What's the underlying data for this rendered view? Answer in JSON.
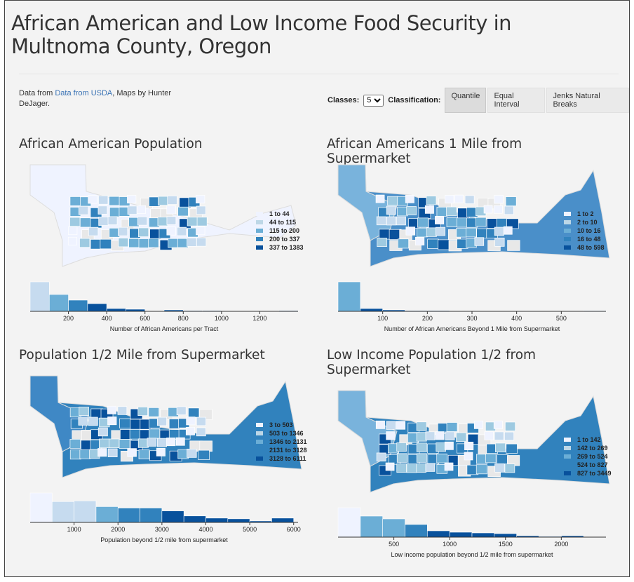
{
  "header": {
    "title": "African American and Low Income Food Security in Multnoma County, Oregon"
  },
  "credits": {
    "prefix": "Data from ",
    "link": "Data from USDA",
    "suffix": ", Maps by Hunter DeJager."
  },
  "controls": {
    "classes_label": "Classes:",
    "classes_value": "5",
    "classification_label": "Classification:",
    "buttons": [
      "Quantile",
      "Equal Interval",
      "Jenks Natural Breaks"
    ],
    "active_button": 0
  },
  "chart_data": [
    {
      "type": "histogram",
      "title": "African American Population",
      "legend": [
        {
          "label": "1 to 44",
          "color": "#eff3ff"
        },
        {
          "label": "44 to 115",
          "color": "#bdd7e7"
        },
        {
          "label": "115 to 200",
          "color": "#6baed6"
        },
        {
          "label": "200 to 337",
          "color": "#3182bd"
        },
        {
          "label": "337 to 1383",
          "color": "#08519c"
        }
      ],
      "bins": [
        0,
        100,
        200,
        300,
        400,
        500,
        600,
        700,
        800,
        900,
        1000,
        1100,
        1200,
        1300,
        1400
      ],
      "values": [
        42,
        24,
        16,
        11,
        4,
        3,
        0,
        2,
        1,
        1,
        0,
        0,
        0,
        1
      ],
      "bar_colors": [
        "#c6dbef",
        "#6baed6",
        "#3182bd",
        "#08519c",
        "#08519c",
        "#08519c",
        "#08519c",
        "#08519c",
        "#08519c",
        "#08519c",
        "#08519c",
        "#08519c",
        "#08519c",
        "#08519c"
      ],
      "xlim": [
        0,
        1400
      ],
      "xticks": [
        200,
        400,
        600,
        800,
        1000,
        1200
      ],
      "xlabel": "Number of African Americans per Tract"
    },
    {
      "type": "histogram",
      "title": "African Americans 1 Mile from Supermarket",
      "legend": [
        {
          "label": "1 to 2",
          "color": "#eff3ff"
        },
        {
          "label": "2 to 10",
          "color": "#bdd7e7"
        },
        {
          "label": "10 to 16",
          "color": "#6baed6"
        },
        {
          "label": "16 to 48",
          "color": "#3182bd"
        },
        {
          "label": "48 to 598",
          "color": "#08519c"
        }
      ],
      "bins": [
        0,
        50,
        100,
        150,
        200,
        250,
        300,
        350,
        400,
        450,
        500,
        550,
        600
      ],
      "values": [
        42,
        4,
        2,
        1,
        1,
        0,
        0,
        0,
        0,
        0,
        0,
        1
      ],
      "bar_colors": [
        "#6baed6",
        "#08519c",
        "#08519c",
        "#08519c",
        "#08519c",
        "#08519c",
        "#08519c",
        "#08519c",
        "#08519c",
        "#08519c",
        "#08519c",
        "#9ecae1"
      ],
      "xlim": [
        0,
        600
      ],
      "xticks": [
        100,
        200,
        300,
        400,
        500
      ],
      "xlabel": "Number of African Americans Beyond 1 Mile from Supermarket"
    },
    {
      "type": "histogram",
      "title": "Population 1/2 Mile from Supermarket",
      "legend": [
        {
          "label": "3 to 503",
          "color": "#eff3ff"
        },
        {
          "label": "503 to 1346",
          "color": "#bdd7e7"
        },
        {
          "label": "1346 to 2131",
          "color": "#6baed6"
        },
        {
          "label": "2131 to 3128",
          "color": "#3182bd"
        },
        {
          "label": "3128 to 6111",
          "color": "#08519c"
        }
      ],
      "bins": [
        0,
        500,
        1000,
        1500,
        2000,
        2500,
        3000,
        3500,
        4000,
        4500,
        5000,
        5500,
        6000
      ],
      "values": [
        41,
        29,
        30,
        22,
        20,
        20,
        16,
        9,
        6,
        5,
        2,
        6
      ],
      "bar_colors": [
        "#eff3ff",
        "#c6dbef",
        "#c6dbef",
        "#6baed6",
        "#3182bd",
        "#3182bd",
        "#08519c",
        "#08519c",
        "#08519c",
        "#08519c",
        "#08519c",
        "#08519c"
      ],
      "xlim": [
        0,
        6100
      ],
      "xticks": [
        1000,
        2000,
        3000,
        4000,
        5000,
        6000
      ],
      "xlabel": "Population beyond 1/2 mile from supermarket"
    },
    {
      "type": "histogram",
      "title": "Low Income Population 1/2 from Supermarket",
      "legend": [
        {
          "label": "1 to 142",
          "color": "#eff3ff"
        },
        {
          "label": "142 to 269",
          "color": "#bdd7e7"
        },
        {
          "label": "269 to 524",
          "color": "#6baed6"
        },
        {
          "label": "524 to 827",
          "color": "#3182bd"
        },
        {
          "label": "827 to 3449",
          "color": "#08519c"
        }
      ],
      "bins": [
        0,
        200,
        400,
        600,
        800,
        1000,
        1200,
        1400,
        1600,
        1800,
        2000,
        2200
      ],
      "values": [
        42,
        30,
        26,
        18,
        9,
        7,
        6,
        5,
        2,
        1,
        2
      ],
      "bar_colors": [
        "#eff3ff",
        "#6baed6",
        "#6baed6",
        "#3182bd",
        "#08519c",
        "#08519c",
        "#08519c",
        "#08519c",
        "#08519c",
        "#08519c",
        "#08519c"
      ],
      "xlim": [
        0,
        2400
      ],
      "xticks": [
        500,
        1000,
        1500,
        2000
      ],
      "xlabel": "Low income population beyond 1/2 mile from supermarket"
    }
  ]
}
